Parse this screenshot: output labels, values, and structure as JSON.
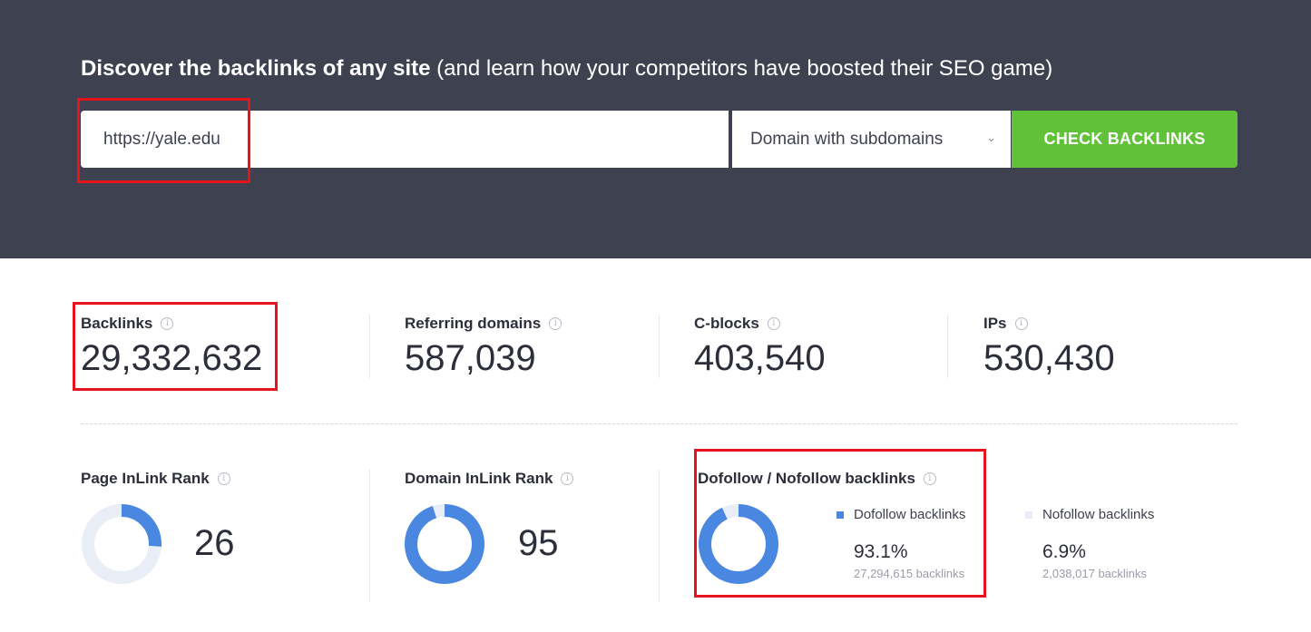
{
  "hero": {
    "title_bold": "Discover the backlinks of any site",
    "title_rest": " (and learn how your competitors have boosted their SEO game)",
    "url_value": "https://yale.edu",
    "mode_selected": "Domain with subdomains",
    "check_label": "CHECK BACKLINKS"
  },
  "stats": {
    "backlinks": {
      "label": "Backlinks",
      "value": "29,332,632"
    },
    "referring_domains": {
      "label": "Referring domains",
      "value": "587,039"
    },
    "c_blocks": {
      "label": "C-blocks",
      "value": "403,540"
    },
    "ips": {
      "label": "IPs",
      "value": "530,430"
    }
  },
  "ranks": {
    "page_inlink": {
      "label": "Page InLink Rank",
      "value": "26",
      "percent": 26
    },
    "domain_inlink": {
      "label": "Domain InLink Rank",
      "value": "95",
      "percent": 95
    }
  },
  "follow": {
    "label": "Dofollow / Nofollow backlinks",
    "dofollow": {
      "label": "Dofollow backlinks",
      "pct": "93.1%",
      "count": "27,294,615 backlinks",
      "percent": 93.1
    },
    "nofollow": {
      "label": "Nofollow backlinks",
      "pct": "6.9%",
      "count": "2,038,017 backlinks"
    }
  },
  "colors": {
    "hero_bg": "#3e414f",
    "accent_blue": "#4a87e0",
    "ring_track": "#e9edf5",
    "button_green": "#61c23a",
    "highlight_red": "#e8141c"
  },
  "icons": {
    "info": "i",
    "chevron": "⌄"
  }
}
